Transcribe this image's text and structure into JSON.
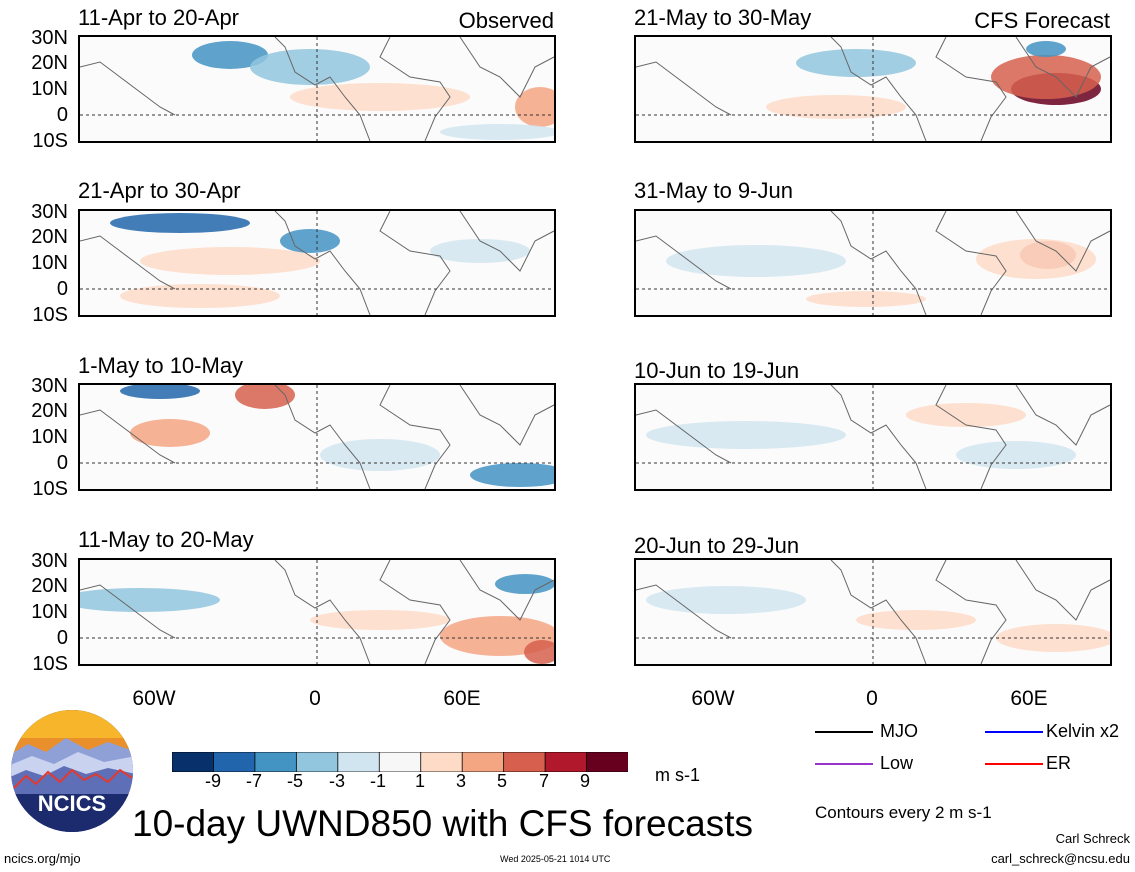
{
  "title": "10-day UWND850 with CFS forecasts",
  "column_labels": {
    "observed": "Observed",
    "forecast": "CFS Forecast"
  },
  "panels": {
    "left": [
      "11-Apr to 20-Apr",
      "21-Apr to 30-Apr",
      "1-May to 10-May",
      "11-May to 20-May"
    ],
    "right": [
      "21-May to 30-May",
      "31-May to 9-Jun",
      "10-Jun to 19-Jun",
      "20-Jun to 29-Jun"
    ]
  },
  "lat_labels": [
    "30N",
    "20N",
    "10N",
    "0",
    "10S"
  ],
  "lon_labels": [
    "60W",
    "0",
    "60E"
  ],
  "colorbar": {
    "ticks": [
      "-9",
      "-7",
      "-5",
      "-3",
      "-1",
      "1",
      "3",
      "5",
      "7",
      "9"
    ],
    "unit": "m s-1",
    "colors": [
      "#08306b",
      "#2166ac",
      "#4393c3",
      "#92c5de",
      "#d1e5f0",
      "#f7f7f7",
      "#fddbc7",
      "#f4a582",
      "#d6604d",
      "#b2182b",
      "#67001f"
    ]
  },
  "legend": {
    "items": [
      {
        "label": "MJO",
        "color": "#000000"
      },
      {
        "label": "Kelvin x2",
        "color": "#0000ff"
      },
      {
        "label": "Low",
        "color": "#9933cc"
      },
      {
        "label": "ER",
        "color": "#ff0000"
      }
    ],
    "contour_note": "Contours every 2 m s-1"
  },
  "logo": {
    "text": "NCICS"
  },
  "footer": {
    "url": "ncics.org/mjo",
    "timestamp": "Wed 2025-05-21 1014 UTC",
    "author": "Carl Schreck",
    "email": "carl_schreck@ncsu.edu"
  }
}
